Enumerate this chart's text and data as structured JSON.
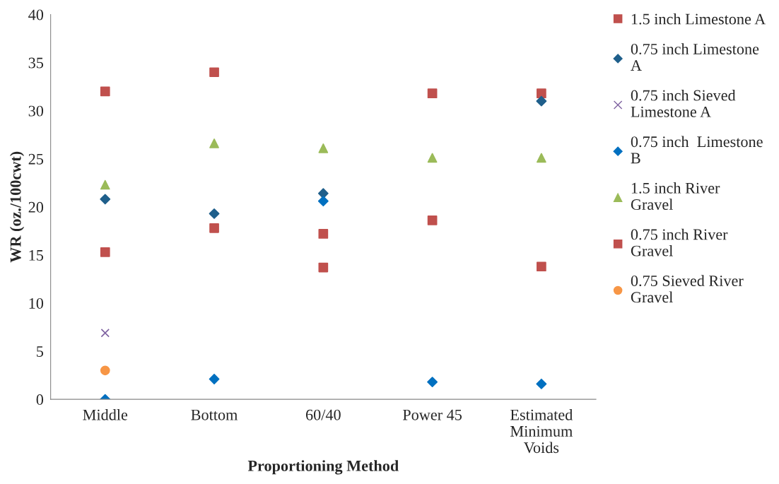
{
  "chart_data": {
    "type": "scatter",
    "xlabel": "Proportioning Method",
    "ylabel": "WR (oz./100cwt)",
    "categories": [
      "Middle",
      "Bottom",
      "60/40",
      "Power 45",
      "Estimated Minimum Voids"
    ],
    "ylim": [
      0,
      40
    ],
    "yticks": [
      0,
      5,
      10,
      15,
      20,
      25,
      30,
      35,
      40
    ],
    "grid": false,
    "legend": "right",
    "series": [
      {
        "name": "1.5 inch Limestone A",
        "color": "#c0504d",
        "marker": "square",
        "values": [
          32.0,
          34.0,
          13.7,
          31.8,
          31.8
        ]
      },
      {
        "name": "0.75 inch Limestone A",
        "color": "#1f5f8b",
        "marker": "diamond",
        "values": [
          20.8,
          19.3,
          21.4,
          null,
          31.0
        ]
      },
      {
        "name": "0.75 inch Sieved Limestone A",
        "color": "#8064a2",
        "marker": "cross",
        "values": [
          6.9,
          null,
          null,
          null,
          null
        ]
      },
      {
        "name": "0.75 inch  Limestone B",
        "color": "#0070c0",
        "marker": "diamond",
        "values": [
          0.0,
          2.1,
          20.6,
          1.8,
          1.6
        ]
      },
      {
        "name": "1.5 inch River Gravel",
        "color": "#9bbb59",
        "marker": "triangle",
        "values": [
          22.3,
          26.6,
          26.1,
          25.1,
          25.1
        ]
      },
      {
        "name": "0.75 inch River Gravel",
        "color": "#c0504d",
        "marker": "square",
        "values": [
          15.3,
          17.8,
          17.2,
          18.6,
          13.8
        ]
      },
      {
        "name": "0.75 Sieved River Gravel",
        "color": "#f79646",
        "marker": "circle",
        "values": [
          3.0,
          null,
          null,
          null,
          null
        ]
      }
    ]
  }
}
